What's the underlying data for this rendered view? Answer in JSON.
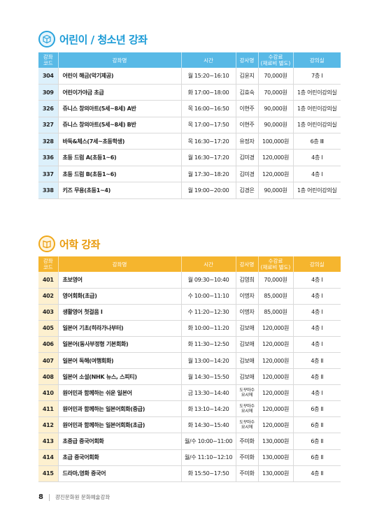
{
  "section1": {
    "title": "어린이 / 청소년 강좌"
  },
  "section2": {
    "title": "어학 강좌"
  },
  "headers": {
    "code": "강좌\n코드",
    "name": "강좌명",
    "time": "시간",
    "teacher": "강사명",
    "fee": "수강료\n(재료비 별도)",
    "room": "강의실"
  },
  "table1": [
    {
      "code": "304",
      "name": "어린이 해금(악기제공)",
      "time": "월 15:20~16:10",
      "teacher": "김윤지",
      "fee": "70,000원",
      "room": "7층 Ⅰ"
    },
    {
      "code": "309",
      "name": "어린이가야금 초급",
      "time": "화 17:00~18:00",
      "teacher": "김효숙",
      "fee": "70,000원",
      "room": "1층 어린이강의실"
    },
    {
      "code": "326",
      "name": "쥬니스 창의아트(5세~8세) A반",
      "time": "목 16:00~16:50",
      "teacher": "이현주",
      "fee": "90,000원",
      "room": "1층 어린이강의실"
    },
    {
      "code": "327",
      "name": "쥬니스 창의아트(5세~8세) B반",
      "time": "목 17:00~17:50",
      "teacher": "이현주",
      "fee": "90,000원",
      "room": "1층 어린이강의실"
    },
    {
      "code": "328",
      "name": "바둑&체스(7세~초등학생)",
      "time": "목 16:30~17:20",
      "teacher": "유정자",
      "fee": "100,000원",
      "room": "6층 Ⅲ"
    },
    {
      "code": "336",
      "name": "초등 드럼 A(초등1~6)",
      "time": "월 16:30~17:20",
      "teacher": "김미경",
      "fee": "120,000원",
      "room": "4층 Ⅰ"
    },
    {
      "code": "337",
      "name": "초등 드럼 B(초등1~6)",
      "time": "월 17:30~18:20",
      "teacher": "김미경",
      "fee": "120,000원",
      "room": "4층 Ⅰ"
    },
    {
      "code": "338",
      "name": "키즈 무용(초등1~4)",
      "time": "월 19:00~20:00",
      "teacher": "김경은",
      "fee": "90,000원",
      "room": "1층 어린이강의실"
    }
  ],
  "table2": [
    {
      "code": "401",
      "name": "초보영어",
      "time": "월 09:30~10:40",
      "teacher": "김영희",
      "fee": "70,000원",
      "room": "4층 Ⅰ"
    },
    {
      "code": "402",
      "name": "영어회화(초급)",
      "time": "수 10:00~11:10",
      "teacher": "이명자",
      "fee": "85,000원",
      "room": "4층 Ⅰ"
    },
    {
      "code": "403",
      "name": "생활영어 첫걸음 Ⅰ",
      "time": "수 11:20~12:30",
      "teacher": "이명자",
      "fee": "85,000원",
      "room": "4층 Ⅰ"
    },
    {
      "code": "405",
      "name": "일본어 기초(히라가나부터)",
      "time": "화 10:00~11:20",
      "teacher": "김보애",
      "fee": "120,000원",
      "room": "4층 Ⅰ"
    },
    {
      "code": "406",
      "name": "일본어(동사부정형 기본회화)",
      "time": "화 11:30~12:50",
      "teacher": "김보애",
      "fee": "120,000원",
      "room": "4층 Ⅰ"
    },
    {
      "code": "407",
      "name": "일본어 독해(여행회화)",
      "time": "월 13:00~14:20",
      "teacher": "김보애",
      "fee": "120,000원",
      "room": "4층 Ⅱ"
    },
    {
      "code": "408",
      "name": "일본어 소설(NHK 뉴스, 스피티)",
      "time": "월 14:30~15:50",
      "teacher": "김보애",
      "fee": "120,000원",
      "room": "4층 Ⅱ"
    },
    {
      "code": "410",
      "name": "원어민과 함께하는 쉬운 일본어",
      "time": "금 13:30~14:40",
      "teacher": "도꾸마수\n요시에",
      "fee": "120,000원",
      "room": "4층 Ⅰ"
    },
    {
      "code": "411",
      "name": "원어민과 함께하는 일본어회화(중급)",
      "time": "화 13:10~14:20",
      "teacher": "도꾸마수\n요시에",
      "fee": "120,000원",
      "room": "6층 Ⅱ"
    },
    {
      "code": "412",
      "name": "원어민과 함께하는 일본어회화(초급)",
      "time": "화 14:30~15:40",
      "teacher": "도꾸마수\n요시에",
      "fee": "120,000원",
      "room": "6층 Ⅱ"
    },
    {
      "code": "413",
      "name": "초중급 중국어회화",
      "time": "월/수 10:00~11:00",
      "teacher": "주미화",
      "fee": "130,000원",
      "room": "6층 Ⅱ"
    },
    {
      "code": "414",
      "name": "초급 중국어회화",
      "time": "월/수 11:10~12:10",
      "teacher": "주미화",
      "fee": "130,000원",
      "room": "6층 Ⅱ"
    },
    {
      "code": "415",
      "name": "드라마,영화 중국어",
      "time": "화 15:50~17:50",
      "teacher": "주미화",
      "fee": "130,000원",
      "room": "4층 Ⅱ"
    }
  ],
  "footer": {
    "page": "8",
    "label": "광진문화원 문화예술강좌"
  },
  "colors": {
    "section1_accent": "#58b9e6",
    "section2_accent": "#f5b52e"
  },
  "icons": {
    "section1": "cube-icon",
    "section2": "book-icon"
  }
}
